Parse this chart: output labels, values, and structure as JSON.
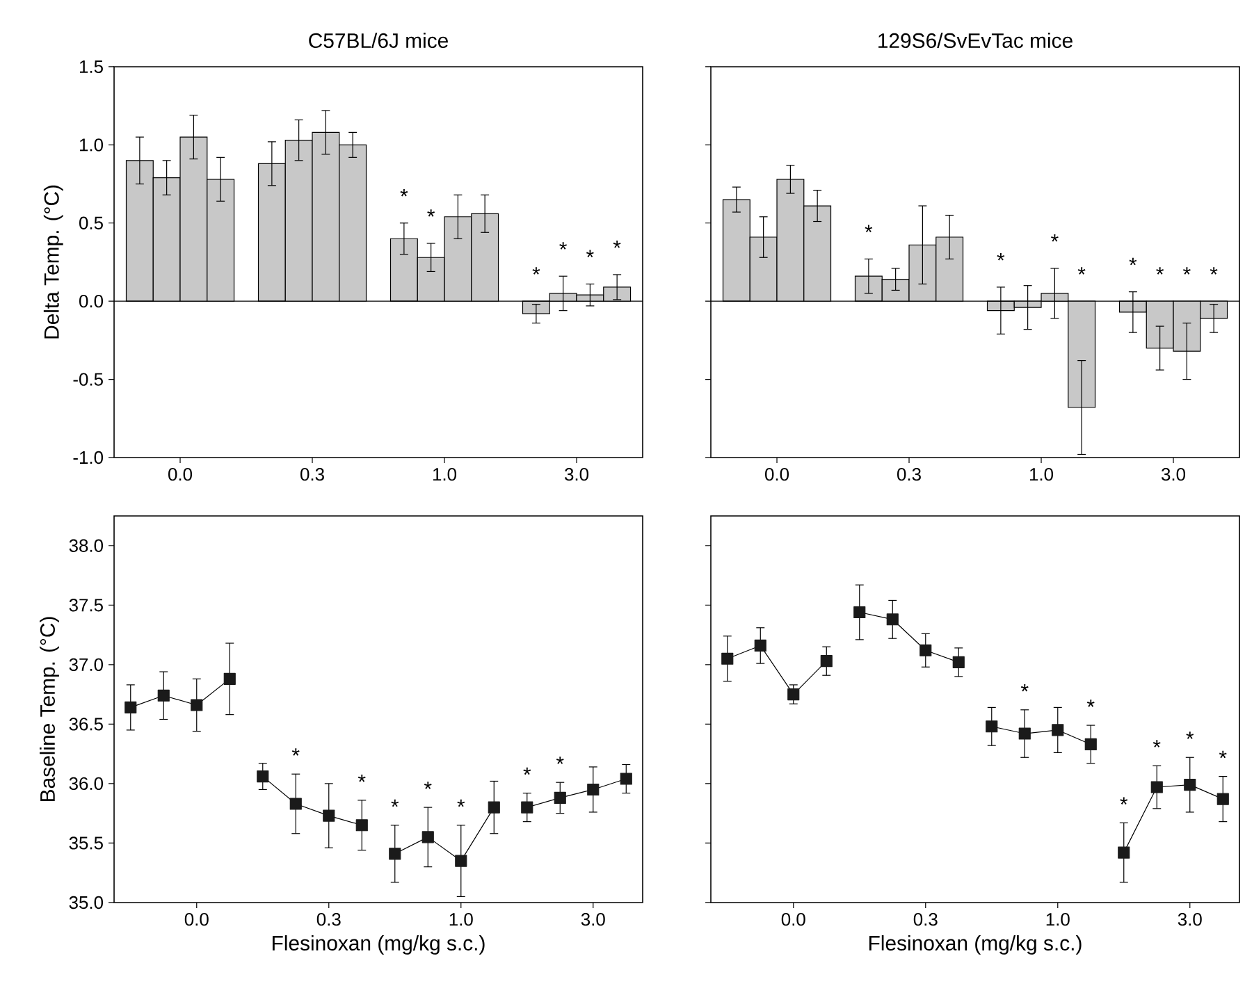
{
  "chart_data": [
    {
      "type": "bar",
      "title": "C57BL/6J mice",
      "ylabel": "Delta Temp. (°C)",
      "categories": [
        "0.0",
        "0.3",
        "1.0",
        "3.0"
      ],
      "series": [
        {
          "color": "#c8c8c8",
          "values": [
            0.9,
            0.88,
            0.4,
            -0.08
          ],
          "errors": [
            0.15,
            0.14,
            0.1,
            0.06
          ],
          "value_labels": [
            null,
            null,
            "*",
            "*"
          ]
        },
        {
          "color": "#c8c8c8",
          "values": [
            0.79,
            1.03,
            0.28,
            0.05
          ],
          "errors": [
            0.11,
            0.13,
            0.09,
            0.11
          ],
          "value_labels": [
            null,
            null,
            "*",
            "*"
          ]
        },
        {
          "color": "#c8c8c8",
          "values": [
            1.05,
            1.08,
            0.54,
            0.04
          ],
          "errors": [
            0.14,
            0.14,
            0.14,
            0.07
          ],
          "value_labels": [
            null,
            null,
            null,
            "*"
          ]
        },
        {
          "color": "#c8c8c8",
          "values": [
            0.78,
            1.0,
            0.56,
            0.09
          ],
          "errors": [
            0.14,
            0.08,
            0.12,
            0.08
          ],
          "value_labels": [
            null,
            null,
            null,
            "*"
          ]
        }
      ],
      "ylim": [
        -1,
        1.5
      ],
      "yticks": [
        {
          "value": -1,
          "label": "-1.0"
        },
        {
          "value": -0.5,
          "label": "-0.5"
        },
        {
          "value": 0,
          "label": "0.0"
        },
        {
          "value": 0.5,
          "label": "0.5"
        },
        {
          "value": 1,
          "label": "1.0"
        },
        {
          "value": 1.5,
          "label": "1.5"
        }
      ]
    },
    {
      "type": "bar",
      "title": "129S6/SvEvTac mice",
      "tick_labels": "x",
      "categories": [
        "0.0",
        "0.3",
        "1.0",
        "3.0"
      ],
      "series": [
        {
          "color": "#c8c8c8",
          "values": [
            0.65,
            0.16,
            -0.06,
            -0.07
          ],
          "errors": [
            0.08,
            0.11,
            0.15,
            0.13
          ],
          "value_labels": [
            null,
            "*",
            "*",
            "*"
          ]
        },
        {
          "color": "#c8c8c8",
          "values": [
            0.41,
            0.14,
            -0.04,
            -0.3
          ],
          "errors": [
            0.13,
            0.07,
            0.14,
            0.14
          ],
          "value_labels": [
            null,
            null,
            null,
            "*"
          ]
        },
        {
          "color": "#c8c8c8",
          "values": [
            0.78,
            0.36,
            0.05,
            -0.32
          ],
          "errors": [
            0.09,
            0.25,
            0.16,
            0.18
          ],
          "value_labels": [
            null,
            null,
            "*",
            "*"
          ]
        },
        {
          "color": "#c8c8c8",
          "values": [
            0.61,
            0.41,
            -0.68,
            -0.11
          ],
          "errors": [
            0.1,
            0.14,
            0.3,
            0.09
          ],
          "value_labels": [
            null,
            null,
            "*",
            "*"
          ]
        }
      ],
      "ylim": [
        -1,
        1.5
      ],
      "yticks": [
        {
          "value": -1,
          "label": null
        },
        {
          "value": -0.5,
          "label": null
        },
        {
          "value": 0,
          "label": null
        },
        {
          "value": 0.5,
          "label": null
        },
        {
          "value": 1,
          "label": null
        },
        {
          "value": 1.5,
          "label": null
        }
      ]
    },
    {
      "type": "line",
      "ylabel": "Baseline Temp. (°C)",
      "xlabel": "Flesinoxan (mg/kg s.c.)",
      "marker": "square",
      "categories": [
        null,
        null,
        "0.0",
        null,
        null,
        null,
        "0.3",
        null,
        null,
        null,
        "1.0",
        null,
        null,
        null,
        "3.0",
        null
      ],
      "series": [
        {
          "color": "#1a1a1a",
          "values": [
            36.64,
            36.74,
            36.66,
            36.88,
            null,
            null,
            null,
            null,
            null,
            null,
            null,
            null,
            null,
            null,
            null,
            null
          ],
          "errors": [
            0.19,
            0.2,
            0.22,
            0.3,
            null,
            null,
            null,
            null,
            null,
            null,
            null,
            null,
            null,
            null,
            null,
            null
          ]
        },
        {
          "color": "#1a1a1a",
          "values": [
            null,
            null,
            null,
            null,
            36.06,
            35.83,
            35.73,
            35.65,
            null,
            null,
            null,
            null,
            null,
            null,
            null,
            null
          ],
          "errors": [
            null,
            null,
            null,
            null,
            0.11,
            0.25,
            0.27,
            0.21,
            null,
            null,
            null,
            null,
            null,
            null,
            null,
            null
          ],
          "value_labels": [
            null,
            null,
            null,
            null,
            null,
            "*",
            null,
            "*",
            null,
            null,
            null,
            null,
            null,
            null,
            null,
            null
          ]
        },
        {
          "color": "#1a1a1a",
          "values": [
            null,
            null,
            null,
            null,
            null,
            null,
            null,
            null,
            35.41,
            35.55,
            35.35,
            35.8,
            null,
            null,
            null,
            null
          ],
          "errors": [
            null,
            null,
            null,
            null,
            null,
            null,
            null,
            null,
            0.24,
            0.25,
            0.3,
            0.22,
            null,
            null,
            null,
            null
          ],
          "value_labels": [
            null,
            null,
            null,
            null,
            null,
            null,
            null,
            null,
            "*",
            "*",
            "*",
            null,
            null,
            null,
            null,
            null
          ]
        },
        {
          "color": "#1a1a1a",
          "values": [
            null,
            null,
            null,
            null,
            null,
            null,
            null,
            null,
            null,
            null,
            null,
            null,
            35.8,
            35.88,
            35.95,
            36.04
          ],
          "errors": [
            null,
            null,
            null,
            null,
            null,
            null,
            null,
            null,
            null,
            null,
            null,
            null,
            0.12,
            0.13,
            0.19,
            0.12
          ],
          "value_labels": [
            null,
            null,
            null,
            null,
            null,
            null,
            null,
            null,
            null,
            null,
            null,
            null,
            "*",
            "*",
            null,
            null
          ]
        }
      ],
      "ylim": [
        35,
        38.25
      ],
      "yticks": [
        {
          "value": 35,
          "label": "35.0"
        },
        {
          "value": 35.5,
          "label": "35.5"
        },
        {
          "value": 36,
          "label": "36.0"
        },
        {
          "value": 36.5,
          "label": "36.5"
        },
        {
          "value": 37,
          "label": "37.0"
        },
        {
          "value": 37.5,
          "label": "37.5"
        },
        {
          "value": 38,
          "label": "38.0"
        }
      ]
    },
    {
      "type": "line",
      "xlabel": "Flesinoxan (mg/kg s.c.)",
      "marker": "square",
      "tick_labels": "x",
      "categories": [
        null,
        null,
        "0.0",
        null,
        null,
        null,
        "0.3",
        null,
        null,
        null,
        "1.0",
        null,
        null,
        null,
        "3.0",
        null
      ],
      "series": [
        {
          "color": "#1a1a1a",
          "values": [
            37.05,
            37.16,
            36.75,
            37.03,
            null,
            null,
            null,
            null,
            null,
            null,
            null,
            null,
            null,
            null,
            null,
            null
          ],
          "errors": [
            0.19,
            0.15,
            0.08,
            0.12,
            null,
            null,
            null,
            null,
            null,
            null,
            null,
            null,
            null,
            null,
            null,
            null
          ]
        },
        {
          "color": "#1a1a1a",
          "values": [
            null,
            null,
            null,
            null,
            37.44,
            37.38,
            37.12,
            37.02,
            null,
            null,
            null,
            null,
            null,
            null,
            null,
            null
          ],
          "errors": [
            null,
            null,
            null,
            null,
            0.23,
            0.16,
            0.14,
            0.12,
            null,
            null,
            null,
            null,
            null,
            null,
            null,
            null
          ]
        },
        {
          "color": "#1a1a1a",
          "values": [
            null,
            null,
            null,
            null,
            null,
            null,
            null,
            null,
            36.48,
            36.42,
            36.45,
            36.33,
            null,
            null,
            null,
            null
          ],
          "errors": [
            null,
            null,
            null,
            null,
            null,
            null,
            null,
            null,
            0.16,
            0.2,
            0.19,
            0.16,
            null,
            null,
            null,
            null
          ],
          "value_labels": [
            null,
            null,
            null,
            null,
            null,
            null,
            null,
            null,
            null,
            "*",
            null,
            "*",
            null,
            null,
            null,
            null
          ]
        },
        {
          "color": "#1a1a1a",
          "values": [
            null,
            null,
            null,
            null,
            null,
            null,
            null,
            null,
            null,
            null,
            null,
            null,
            35.42,
            35.97,
            35.99,
            35.87
          ],
          "errors": [
            null,
            null,
            null,
            null,
            null,
            null,
            null,
            null,
            null,
            null,
            null,
            null,
            0.25,
            0.18,
            0.23,
            0.19
          ],
          "value_labels": [
            null,
            null,
            null,
            null,
            null,
            null,
            null,
            null,
            null,
            null,
            null,
            null,
            "*",
            "*",
            "*",
            "*"
          ]
        }
      ],
      "ylim": [
        35,
        38.25
      ],
      "yticks": [
        {
          "value": 35,
          "label": null
        },
        {
          "value": 35.5,
          "label": null
        },
        {
          "value": 36,
          "label": null
        },
        {
          "value": 36.5,
          "label": null
        },
        {
          "value": 37,
          "label": null
        },
        {
          "value": 37.5,
          "label": null
        },
        {
          "value": 38,
          "label": null
        }
      ]
    }
  ]
}
